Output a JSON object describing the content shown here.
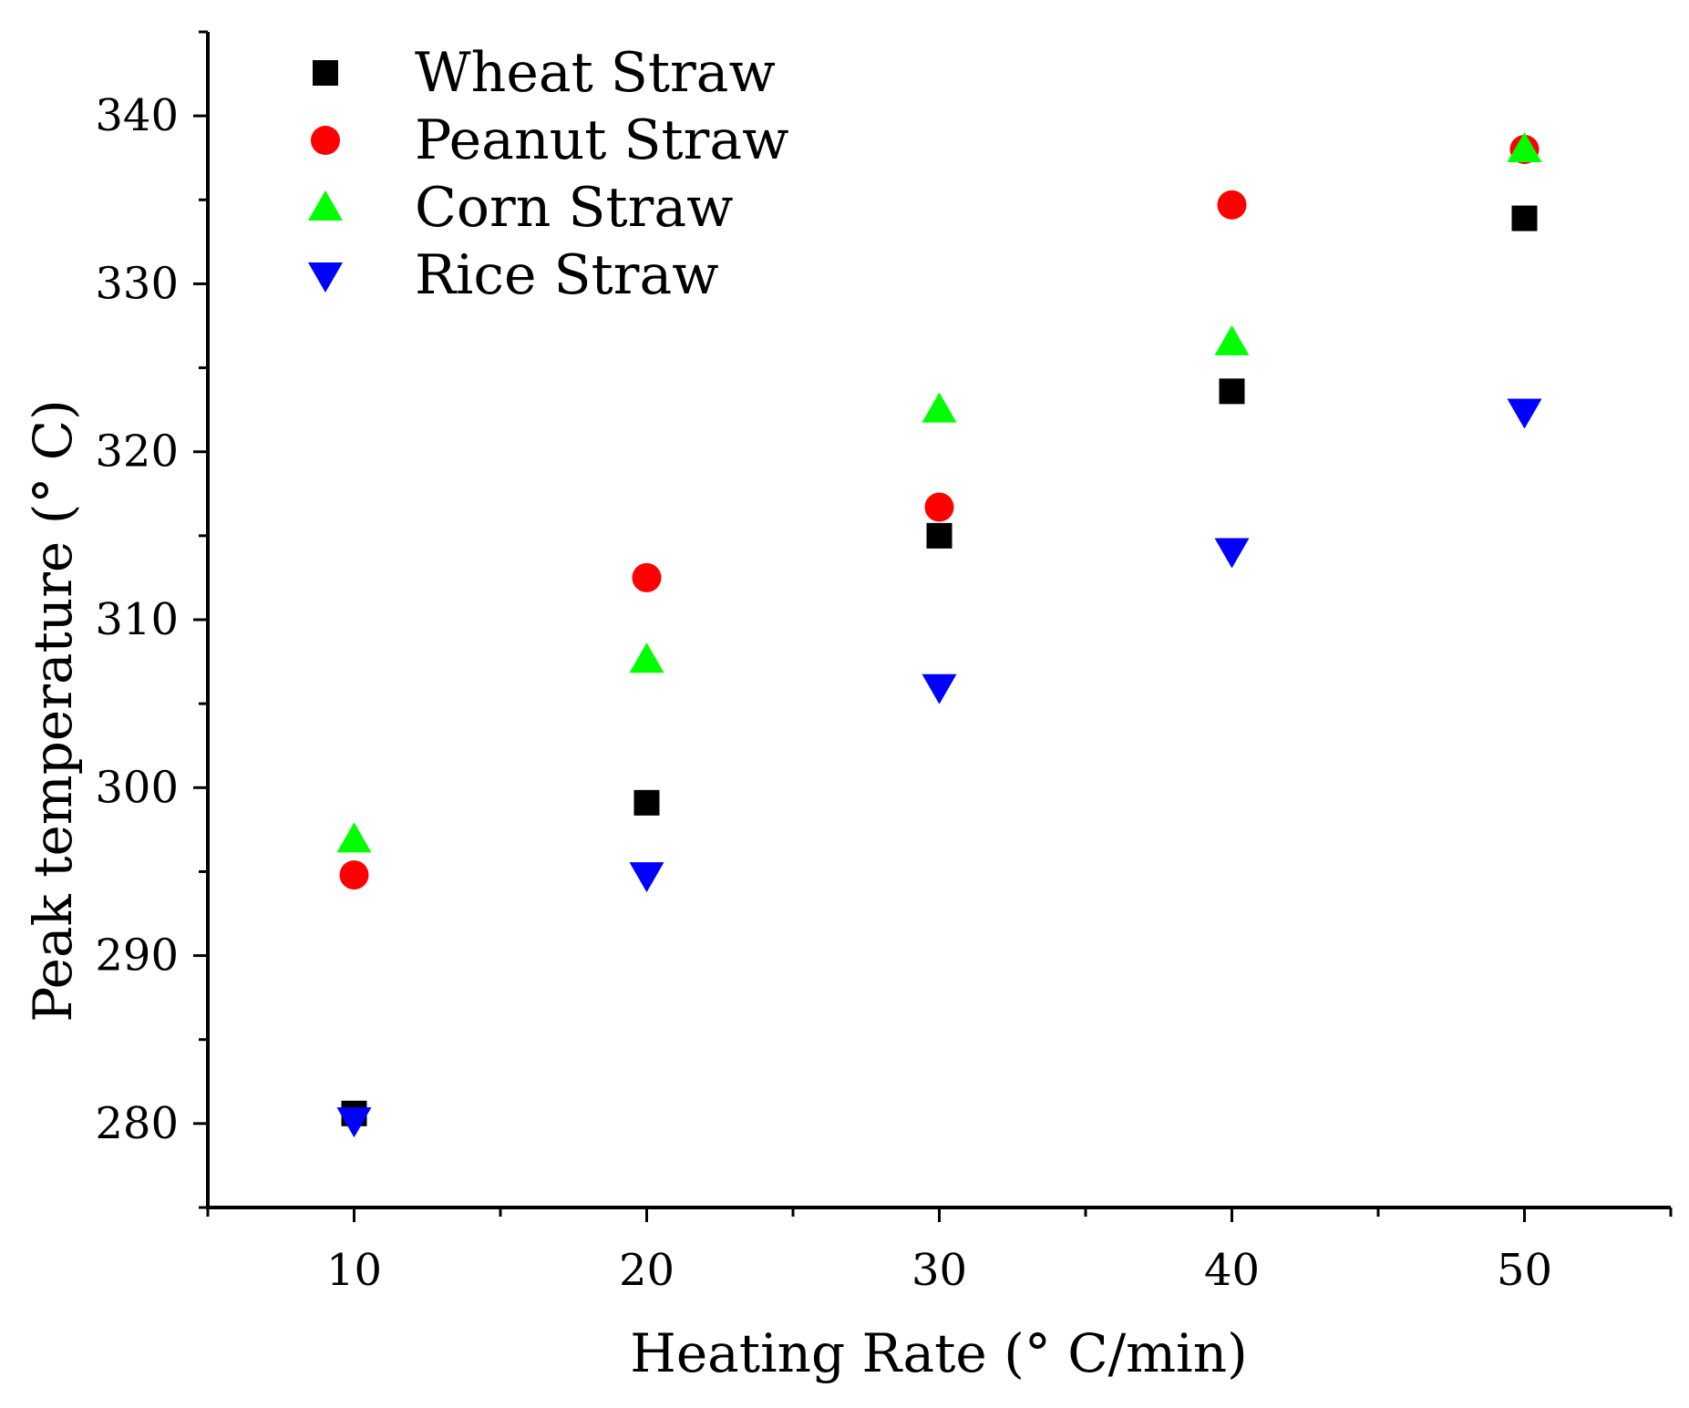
{
  "chart_data": {
    "type": "scatter",
    "title": "",
    "xlabel": "Heating Rate (° C/min)",
    "ylabel": "Peak temperature (° C)",
    "xlim": [
      5,
      55
    ],
    "ylim": [
      275,
      345
    ],
    "x_ticks": [
      10,
      20,
      30,
      40,
      50
    ],
    "y_ticks": [
      280,
      290,
      300,
      310,
      320,
      330,
      340
    ],
    "x_tick_labels": [
      "10",
      "20",
      "30",
      "40",
      "50"
    ],
    "y_tick_labels": [
      "280",
      "290",
      "300",
      "310",
      "320",
      "330",
      "340"
    ],
    "grid": false,
    "legend_position": "top-left",
    "x": [
      10,
      20,
      30,
      40,
      50
    ],
    "series": [
      {
        "name": "Wheat Straw",
        "marker": "square",
        "color": "#000000",
        "values": [
          280.6,
          299.1,
          315.0,
          323.6,
          333.9
        ]
      },
      {
        "name": "Peanut Straw",
        "marker": "circle",
        "color": "#ff0000",
        "values": [
          294.8,
          312.5,
          316.7,
          334.7,
          338.0
        ]
      },
      {
        "name": "Corn Straw",
        "marker": "triangle-up",
        "color": "#00ff00",
        "values": [
          296.9,
          307.6,
          322.5,
          326.5,
          338.0
        ]
      },
      {
        "name": "Rice Straw",
        "marker": "triangle-down",
        "color": "#0000ff",
        "values": [
          280.2,
          294.8,
          306.0,
          314.1,
          322.4
        ]
      }
    ]
  }
}
